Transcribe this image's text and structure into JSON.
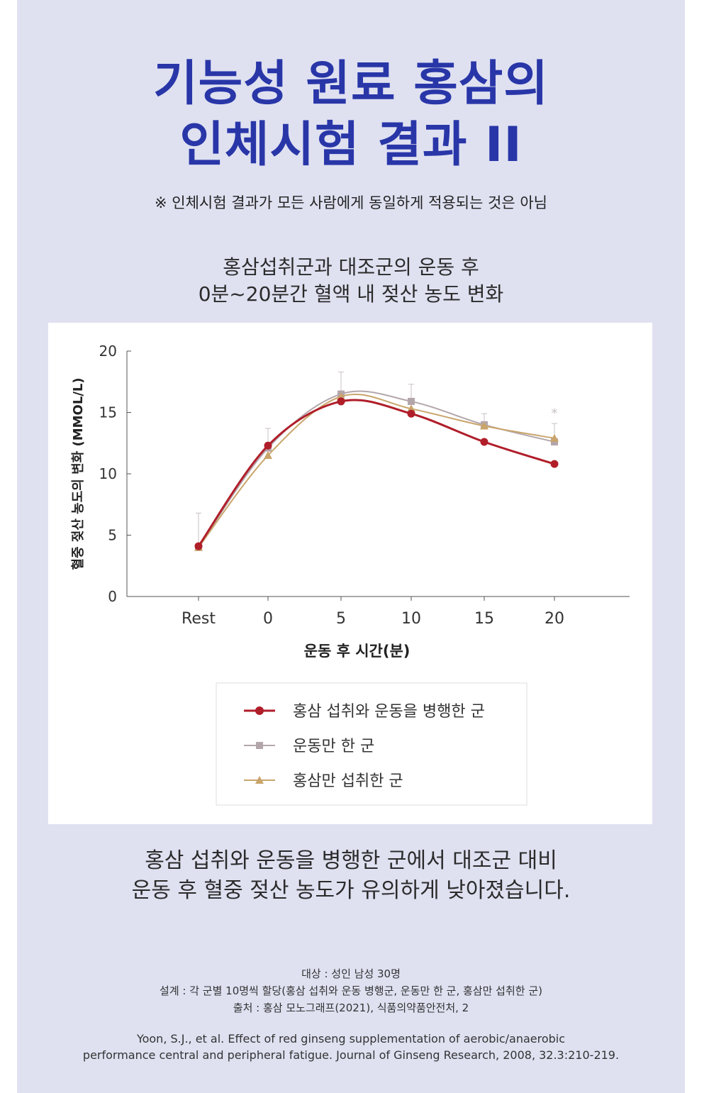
{
  "header": {
    "title_line1": "기능성 원료 홍삼의",
    "title_line2": "인체시험 결과 II",
    "disclaimer": "※ 인체시험 결과가 모든 사람에게 동일하게 적용되는 것은 아님",
    "subtitle_line1": "홍삼섭취군과 대조군의 운동 후",
    "subtitle_line2": "0분~20분간 혈액 내 젖산 농도 변화"
  },
  "chart_data": {
    "type": "line",
    "categories": [
      "Rest",
      "0",
      "5",
      "10",
      "15",
      "20"
    ],
    "ylabel": "혈중 젖산 농도의 변화 (MMOL/L)",
    "xlabel": "운동 후 시간(분)",
    "ylim": [
      0,
      20
    ],
    "yticks": [
      "0",
      "5",
      "10",
      "15",
      "20"
    ],
    "legend_position": "bottom",
    "series": [
      {
        "name": "홍삼 섭취와 운동을 병행한 군",
        "marker": "circle",
        "color": "#b01e2a",
        "values": [
          4.1,
          12.3,
          15.9,
          14.9,
          12.6,
          10.8
        ]
      },
      {
        "name": "운동만 한 군",
        "marker": "square",
        "color": "#b3a6ab",
        "values": [
          4.0,
          12.1,
          16.5,
          15.9,
          14.0,
          12.6
        ]
      },
      {
        "name": "홍삼만 섭취한 군",
        "marker": "triangle",
        "color": "#c9a56b",
        "values": [
          4.0,
          11.5,
          16.3,
          15.3,
          13.9,
          12.9
        ]
      }
    ],
    "annotations": [
      "*"
    ]
  },
  "conclusion": {
    "line1": "홍삼 섭취와 운동을 병행한 군에서 대조군 대비",
    "line2": "운동 후 혈중 젖산 농도가 유의하게 낮아졌습니다."
  },
  "footer": {
    "subjects": "대상 : 성인 남성 30명",
    "design": "설계 : 각 군별 10명씩 할당(홍삼 섭취와 운동 병행군, 운동만 한 군, 홍삼만 섭취한 군)",
    "source": "출처 : 홍삼 모노그래프(2021), 식품의약품안전처, 2",
    "reference_line1": "Yoon, S.J., et al. Effect of red ginseng supplementation of aerobic/anaerobic",
    "reference_line2": "performance central and peripheral fatigue. Journal of Ginseng Research, 2008, 32.3:210-219."
  },
  "colors": {
    "background": "#dfe1f1",
    "title": "#2936a8"
  }
}
